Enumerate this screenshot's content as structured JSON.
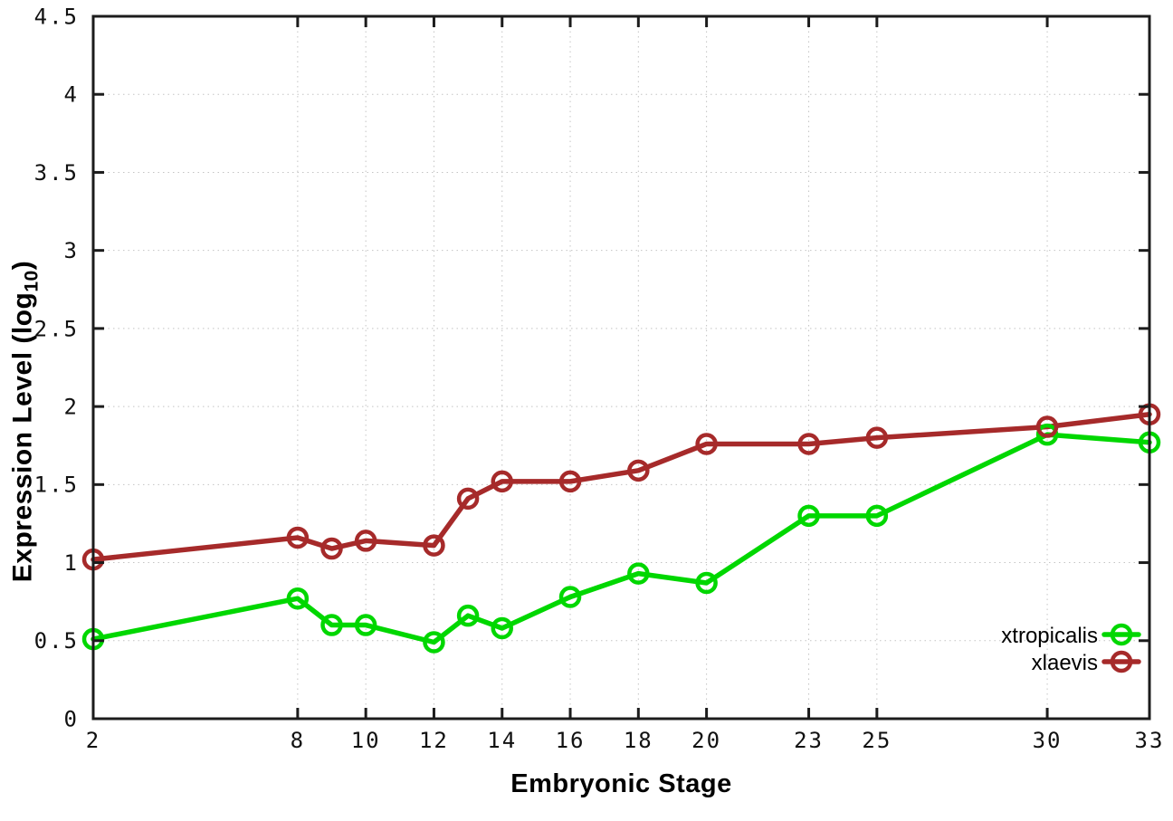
{
  "chart_data": {
    "type": "line",
    "title": "",
    "xlabel": "Embryonic Stage",
    "ylabel": {
      "prefix": "Expression Level (log",
      "sub": "10",
      "suffix": ")"
    },
    "xlim": [
      2,
      33
    ],
    "ylim": [
      0,
      4.5
    ],
    "x_ticks": [
      2,
      8,
      10,
      12,
      14,
      16,
      18,
      20,
      23,
      25,
      30,
      33
    ],
    "x_tick_labels": [
      "2",
      "8",
      "10",
      "12",
      "14",
      "16",
      "18",
      "20",
      "23",
      "25",
      "30",
      "33"
    ],
    "y_ticks": [
      0,
      0.5,
      1,
      1.5,
      2,
      2.5,
      3,
      3.5,
      4,
      4.5
    ],
    "y_tick_labels": [
      "0",
      "0.5",
      "1",
      "1.5",
      "2",
      "2.5",
      "3",
      "3.5",
      "4",
      "4.5"
    ],
    "grid": true,
    "legend_position": "bottom-right",
    "x": [
      2,
      8,
      9,
      10,
      12,
      13,
      14,
      16,
      18,
      20,
      23,
      25,
      30,
      33
    ],
    "series": [
      {
        "name": "xtropicalis",
        "color": "#00d700",
        "values": [
          0.51,
          0.77,
          0.6,
          0.6,
          0.49,
          0.66,
          0.58,
          0.78,
          0.93,
          0.87,
          1.3,
          1.3,
          1.82,
          1.77
        ]
      },
      {
        "name": "xlaevis",
        "color": "#a62a2a",
        "values": [
          1.02,
          1.16,
          1.09,
          1.14,
          1.11,
          1.41,
          1.52,
          1.52,
          1.59,
          1.76,
          1.76,
          1.8,
          1.87,
          1.95
        ]
      }
    ],
    "colors": {
      "background": "#ffffff",
      "grid": "#c4c4c4",
      "axis": "#1c1c1c",
      "tick_text": "#111111"
    }
  }
}
